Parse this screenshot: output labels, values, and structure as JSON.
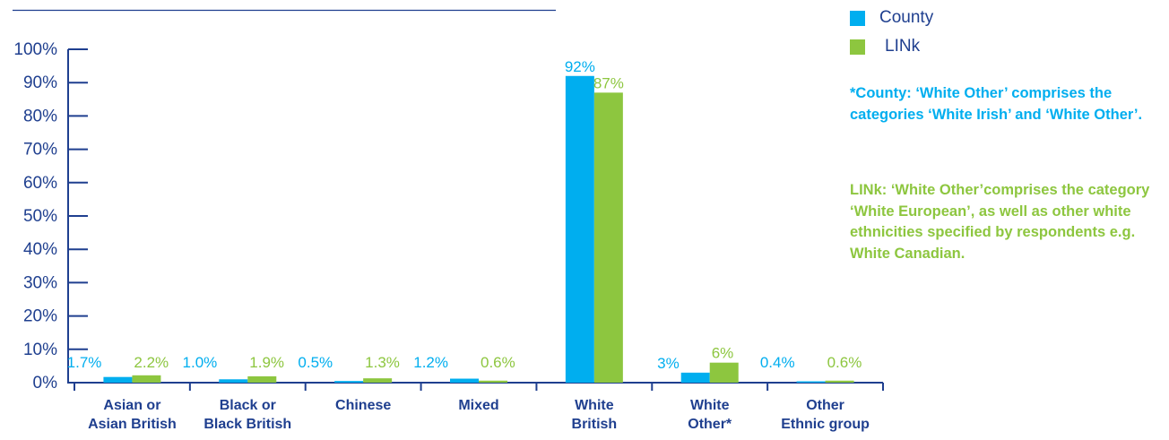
{
  "colors": {
    "county": "#00AEEF",
    "link": "#8DC63F",
    "axis": "#1F3F8F",
    "text": "#1F3F8F"
  },
  "legend": {
    "county_label": "County",
    "link_label": "LINk"
  },
  "notes": {
    "county": "*County: ‘White Other’ comprises the categories ‘White Irish’ and ‘White Other’.",
    "link": "LINk: ‘White Other’comprises the category ‘White European’, as well as other white ethnicities specified by respondents e.g. White Canadian."
  },
  "chart_data": {
    "type": "bar",
    "title": "",
    "xlabel": "",
    "ylabel": "",
    "ylim": [
      0,
      100
    ],
    "yticks": [
      "0%",
      "10%",
      "20%",
      "30%",
      "40%",
      "50%",
      "60%",
      "70%",
      "80%",
      "90%",
      "100%"
    ],
    "categories": [
      [
        "Asian or",
        "Asian British"
      ],
      [
        "Black or",
        "Black British"
      ],
      [
        "Chinese"
      ],
      [
        "Mixed"
      ],
      [
        "White",
        "British"
      ],
      [
        "White",
        "Other*"
      ],
      [
        "Other",
        "Ethnic group"
      ]
    ],
    "series": [
      {
        "name": "County",
        "values": [
          1.7,
          1.0,
          0.5,
          1.2,
          92,
          3,
          0.4
        ],
        "labels": [
          "1.7%",
          "1.0%",
          "0.5%",
          "1.2%",
          "92%",
          "3%",
          "0.4%"
        ]
      },
      {
        "name": "LINk",
        "values": [
          2.2,
          1.9,
          1.3,
          0.6,
          87,
          6,
          0.6
        ],
        "labels": [
          "2.2%",
          "1.9%",
          "1.3%",
          "0.6%",
          "87%",
          "6%",
          "0.6%"
        ]
      }
    ],
    "grid": false,
    "legend_position": "top-right"
  }
}
